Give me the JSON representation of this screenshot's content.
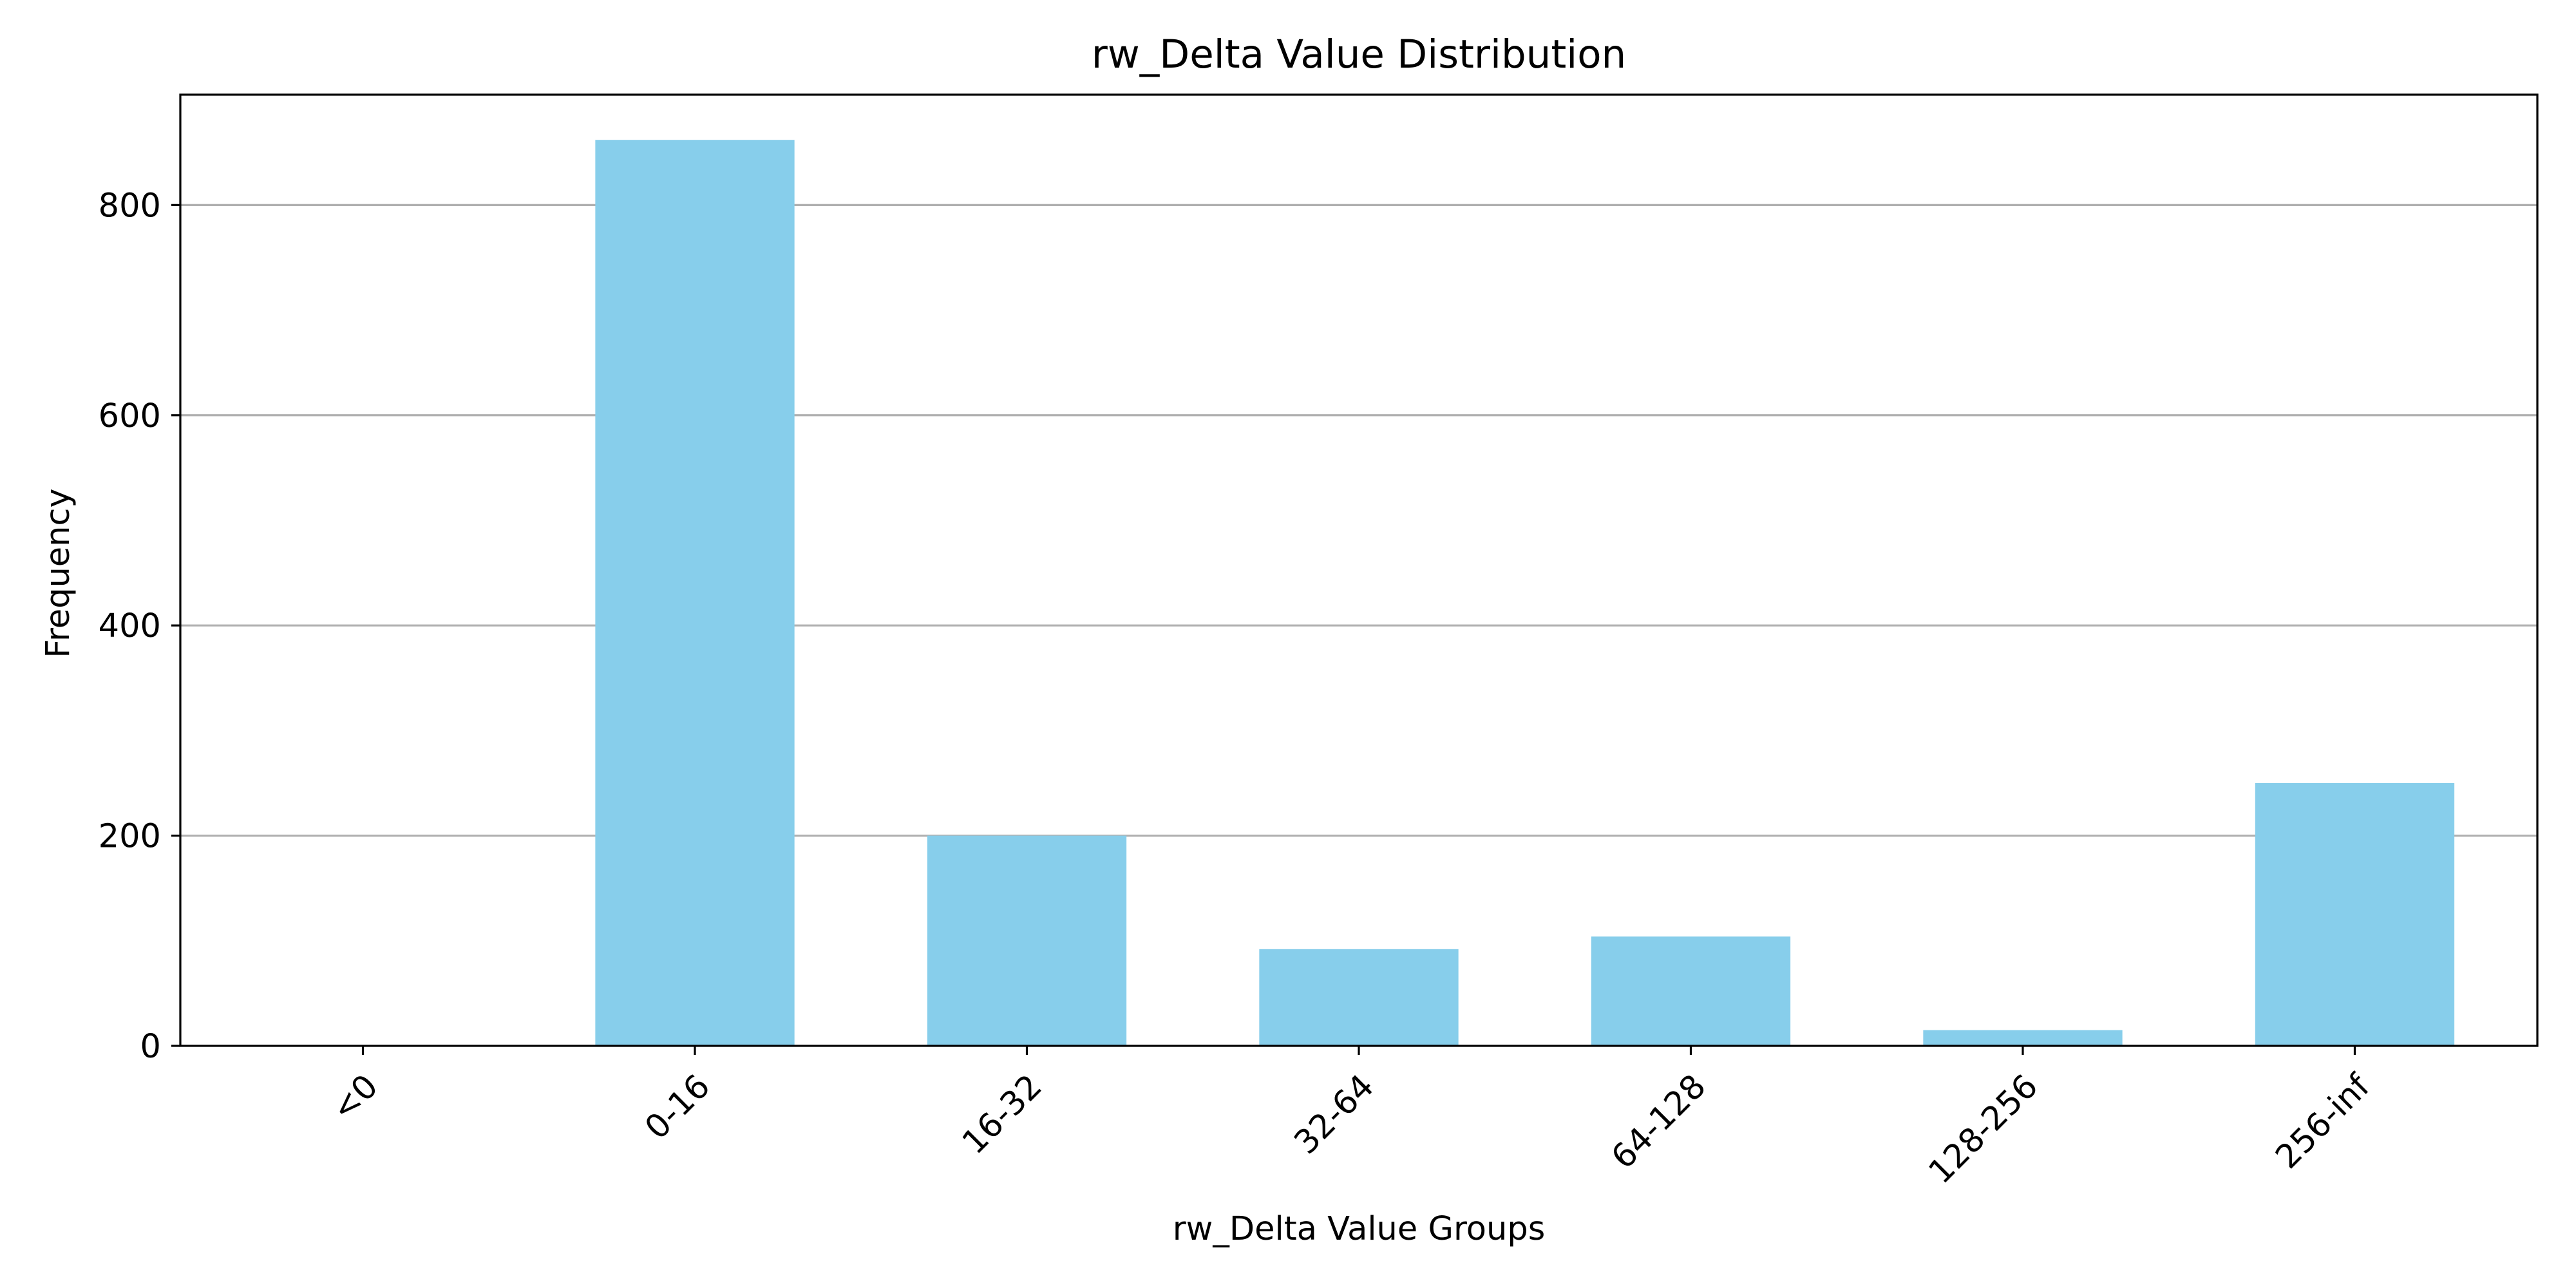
{
  "chart_data": {
    "type": "bar",
    "title": "rw_Delta Value Distribution",
    "xlabel": "rw_Delta Value Groups",
    "ylabel": "Frequency",
    "categories": [
      "<0",
      "0-16",
      "16-32",
      "32-64",
      "64-128",
      "128-256",
      "256-inf"
    ],
    "values": [
      0,
      862,
      200,
      92,
      104,
      15,
      250
    ],
    "ylim": [
      0,
      905
    ],
    "yticks": [
      0,
      200,
      400,
      600,
      800
    ],
    "grid": "y-major",
    "bar_color": "#87ceeb",
    "xtick_rotation": 45
  }
}
